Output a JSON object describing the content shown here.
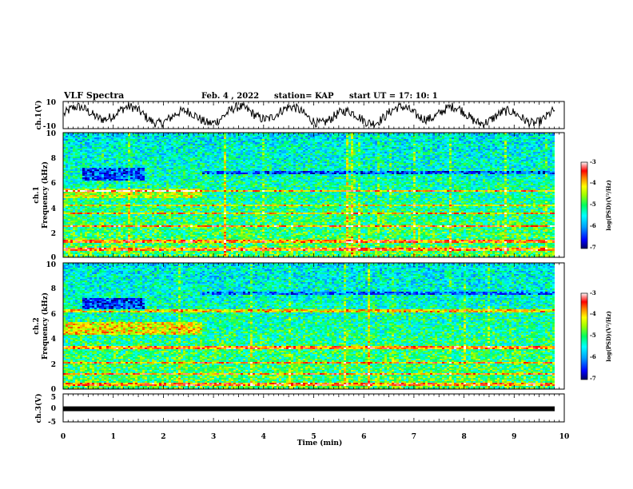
{
  "header": {
    "title": "VLF Spectra",
    "date": "Feb. 4 , 2022",
    "station": "station= KAP",
    "start": "start  UT =   17: 10: 1"
  },
  "colors": {
    "colormap": [
      "#00007f",
      "#0000ff",
      "#00a0ff",
      "#00ffff",
      "#00ff80",
      "#80ff00",
      "#ffff00",
      "#ff8000",
      "#ff0000",
      "#d00000",
      "#ffffff"
    ],
    "trace": "#000000"
  },
  "chart_data": [
    {
      "type": "line",
      "ylabel": "ch.1(V)",
      "ylim": [
        -10,
        10
      ],
      "yticks": [
        "10",
        "-10"
      ],
      "xlim": [
        0,
        10
      ],
      "description_values": "noisy oscillating waveform between about -8 and 9 V"
    },
    {
      "type": "heatmap",
      "ylabel_line1": "ch.1",
      "ylabel_line2": "Frequency (kHz)",
      "ylim": [
        0,
        10
      ],
      "yticks": [
        "0",
        "2",
        "4",
        "6",
        "8",
        "10"
      ],
      "xlim": [
        0,
        10
      ],
      "step_time_min": 2.75,
      "colorbar": {
        "label": "log(PSD)(V²/Hz)",
        "range": [
          -7,
          -3
        ],
        "ticks": [
          "-3",
          "-4",
          "-5",
          "-6",
          "-7"
        ]
      }
    },
    {
      "type": "heatmap",
      "ylabel_line1": "ch.2",
      "ylabel_line2": "Frequency (kHz)",
      "ylim": [
        0,
        10
      ],
      "yticks": [
        "0",
        "2",
        "4",
        "6",
        "8",
        "10"
      ],
      "xlim": [
        0,
        10
      ],
      "step_time_min": 2.75,
      "colorbar": {
        "label": "log(PSD)(V²/Hz)",
        "range": [
          -7,
          -3
        ],
        "ticks": [
          "-3",
          "-4",
          "-5",
          "-6",
          "-7"
        ]
      }
    },
    {
      "type": "line",
      "ylabel": "ch.3(V)",
      "ylim": [
        -5,
        5
      ],
      "yticks": [
        "5",
        "0",
        "-5"
      ],
      "xlim": [
        0,
        10
      ],
      "xticks": [
        "0",
        "1",
        "2",
        "3",
        "4",
        "5",
        "6",
        "7",
        "8",
        "9",
        "10"
      ],
      "xlabel": "Time (min)",
      "level_value": -0.3
    }
  ]
}
